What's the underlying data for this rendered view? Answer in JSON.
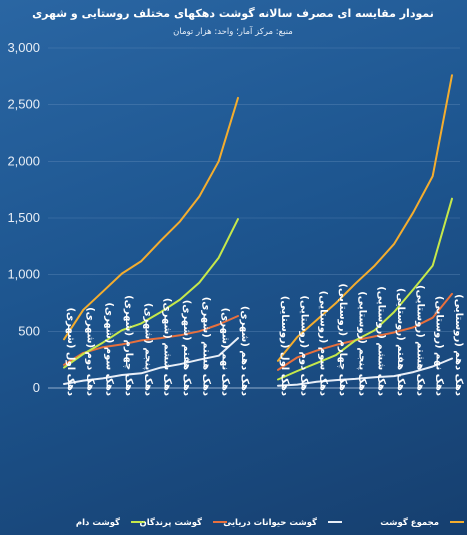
{
  "chart_data": {
    "type": "line",
    "title": "نمودار مقایسه ای مصرف سالانه گوشت دهکهای مختلف روستایی و شهری",
    "subtitle": "منبع: مرکز آمار؛ واحد: هزار تومان",
    "ylim": [
      0,
      3000
    ],
    "yticks": [
      "0",
      "500",
      "1,000",
      "1,500",
      "2,000",
      "2,500",
      "3,000"
    ],
    "grid": true,
    "legend_position": "bottom",
    "colors": {
      "red_meat": "#c6e84a",
      "poultry": "#e8703d",
      "seafood": "#e8eef7",
      "total": "#f4ad2e"
    },
    "groups": [
      {
        "categories": [
          "دهک اول (شهری)",
          "دهک دوم (شهری)",
          "دهک سوم (شهری)",
          "دهک چهارم (شهری)",
          "دهک پنجم (شهری)",
          "دهک ششم (شهری)",
          "دهک هفتم (شهری)",
          "دهک هشتم (شهری)",
          "دهک نهم (شهری)",
          "دهک دهم (شهری)"
        ],
        "series": [
          {
            "key": "red_meat",
            "values": [
              180,
              300,
              400,
              510,
              570,
              670,
              780,
              930,
              1150,
              1490
            ]
          },
          {
            "key": "poultry",
            "values": [
              205,
              310,
              360,
              385,
              420,
              440,
              465,
              500,
              560,
              635
            ]
          },
          {
            "key": "seafood",
            "values": [
              35,
              65,
              85,
              115,
              130,
              180,
              210,
              250,
              285,
              440
            ]
          },
          {
            "key": "total",
            "values": [
              430,
              690,
              850,
              1010,
              1120,
              1300,
              1470,
              1690,
              2000,
              2560
            ]
          }
        ]
      },
      {
        "categories": [
          "دهک اول (روستایی)",
          "دهک دوم (روستایی)",
          "دهک سوم (روستایی)",
          "دهک چهارم (روستایی)",
          "دهک پنجم (روستایی)",
          "دهک ششم (روستایی)",
          "دهک هفتم (روستایی)",
          "دهک هشتم (روستایی)",
          "دهک نهم (روستایی)",
          "دهک دهم (روستایی)"
        ],
        "series": [
          {
            "key": "red_meat",
            "values": [
              75,
              150,
              220,
              290,
              420,
              510,
              670,
              870,
              1080,
              1670
            ]
          },
          {
            "key": "poultry",
            "values": [
              160,
              270,
              330,
              380,
              420,
              455,
              490,
              535,
              620,
              830
            ]
          },
          {
            "key": "seafood",
            "values": [
              20,
              30,
              55,
              70,
              80,
              95,
              105,
              140,
              190,
              260
            ]
          },
          {
            "key": "total",
            "values": [
              240,
              450,
              600,
              750,
              920,
              1080,
              1270,
              1550,
              1870,
              2760
            ]
          }
        ]
      }
    ],
    "legend": [
      {
        "key": "red_meat",
        "label": "گوشت دام"
      },
      {
        "key": "poultry",
        "label": "گوشت پرندگان"
      },
      {
        "key": "seafood",
        "label": "گوشت حیوانات دریایی"
      },
      {
        "key": "total",
        "label": "مجموع گوشت"
      }
    ]
  }
}
